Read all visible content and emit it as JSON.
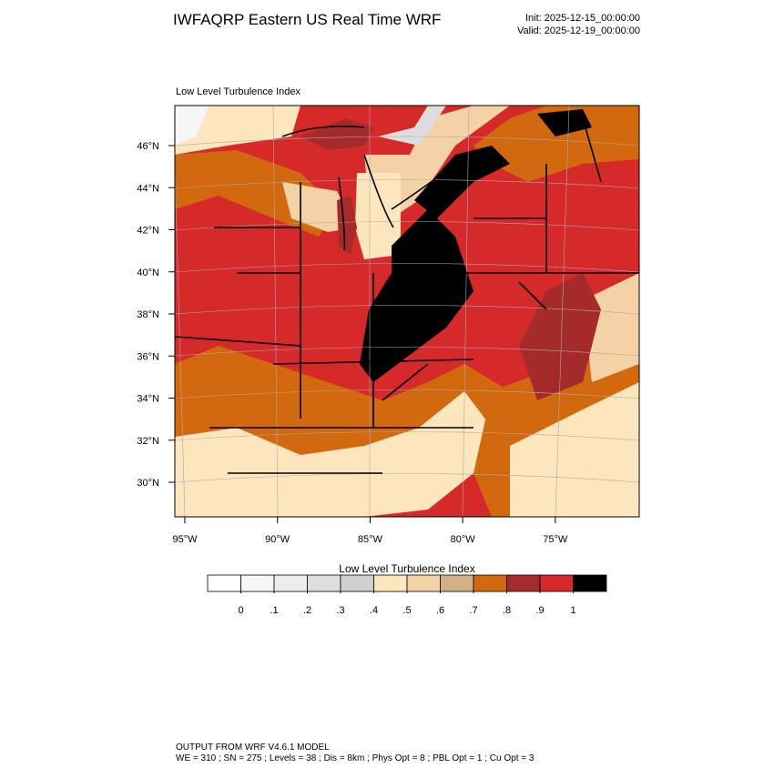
{
  "header": {
    "title": "IWFAQRP Eastern US Real Time WRF",
    "init": "Init: 2025-12-15_00:00:00",
    "valid": "Valid: 2025-12-19_00:00:00"
  },
  "map": {
    "title": "Low Level Turbulence Index",
    "lat_labels": [
      "46°N",
      "44°N",
      "42°N",
      "40°N",
      "38°N",
      "36°N",
      "34°N",
      "32°N",
      "30°N"
    ],
    "lon_labels": [
      "95°W",
      "90°W",
      "85°W",
      "80°W",
      "75°W"
    ]
  },
  "colorbar": {
    "title": "Low Level Turbulence Index",
    "colors": [
      "#ffffff",
      "#f6f6f6",
      "#ececec",
      "#dddddd",
      "#d0d0d0",
      "#fde6bd",
      "#f4d2a6",
      "#d2b08a",
      "#d2690e",
      "#a52a2a",
      "#d62a2a",
      "#000000"
    ],
    "ticks": [
      0,
      {
        "value": 0.1,
        "label": ".1"
      },
      {
        "value": 0.2,
        "label": ".2"
      },
      {
        "value": 0.3,
        "label": ".3"
      },
      {
        "value": 0.4,
        "label": ".4"
      },
      {
        "value": 0.5,
        "label": ".5"
      },
      {
        "value": 0.6,
        "label": ".6"
      },
      {
        "value": 0.7,
        "label": ".7"
      },
      {
        "value": 0.8,
        "label": ".8"
      },
      {
        "value": 0.9,
        "label": ".9"
      },
      1
    ]
  },
  "footer": {
    "line1": "OUTPUT FROM WRF V4.6.1 MODEL",
    "line2": "WE = 310 ; SN = 275 ; Levels = 38 ; Dis = 8km ; Phys Opt = 8 ; PBL Opt = 1 ; Cu Opt = 3"
  }
}
